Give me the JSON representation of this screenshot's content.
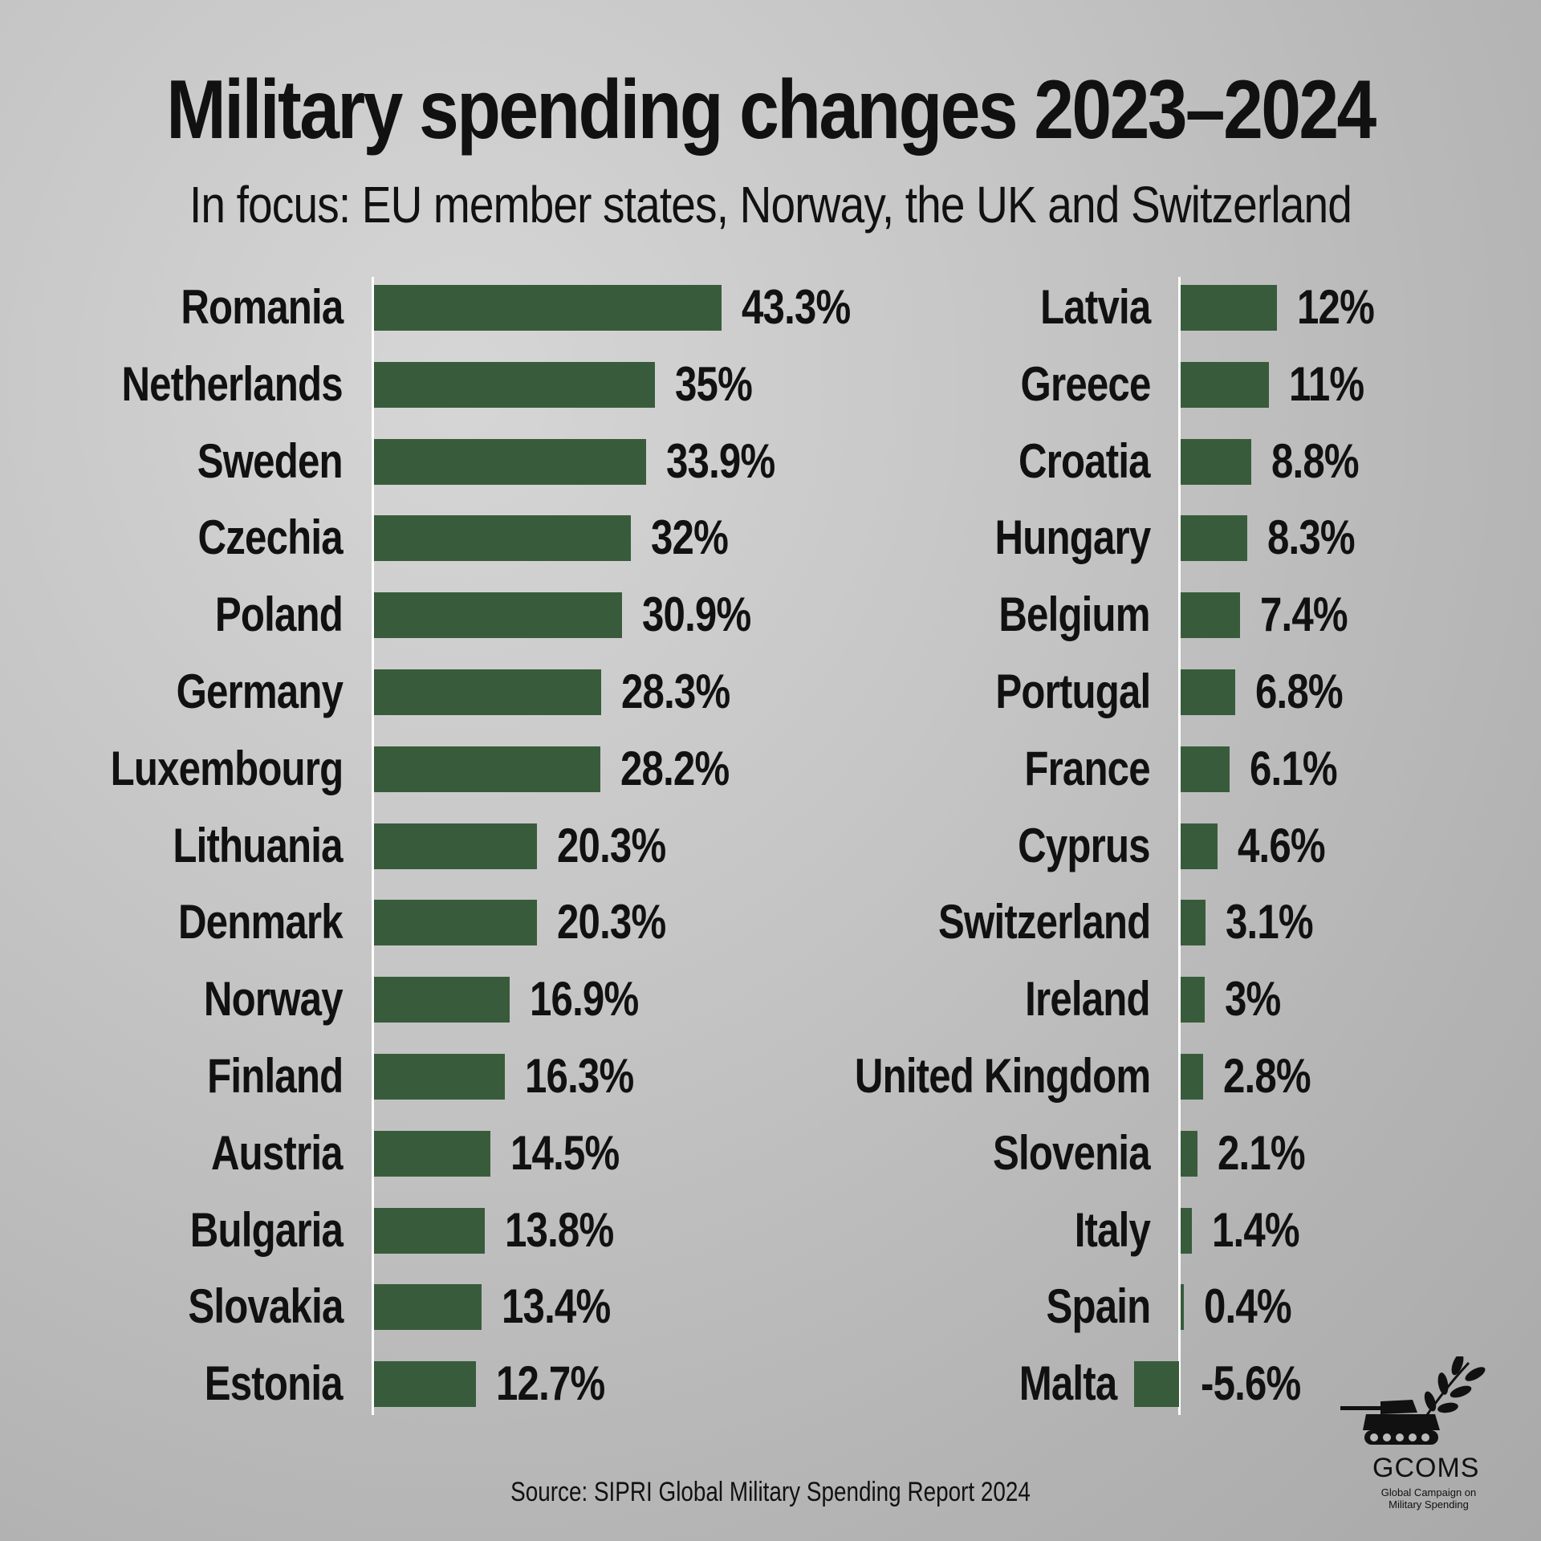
{
  "header": {
    "title": "Military spending changes 2023–2024",
    "subtitle": "In focus: EU member states, Norway, the UK and Switzerland"
  },
  "chart_data": {
    "type": "bar",
    "orientation": "horizontal",
    "title": "Military spending changes 2023–2024",
    "subtitle": "In focus: EU member states, Norway, the UK and Switzerland",
    "unit": "%",
    "bar_color": "#385c3b",
    "columns": [
      {
        "categories": [
          "Romania",
          "Netherlands",
          "Sweden",
          "Czechia",
          "Poland",
          "Germany",
          "Luxembourg",
          "Lithuania",
          "Denmark",
          "Norway",
          "Finland",
          "Austria",
          "Bulgaria",
          "Slovakia",
          "Estonia"
        ],
        "values": [
          43.3,
          35,
          33.9,
          32,
          30.9,
          28.3,
          28.2,
          20.3,
          20.3,
          16.9,
          16.3,
          14.5,
          13.8,
          13.4,
          12.7
        ],
        "labels": [
          "43.3%",
          "35%",
          "33.9%",
          "32%",
          "30.9%",
          "28.3%",
          "28.2%",
          "20.3%",
          "20.3%",
          "16.9%",
          "16.3%",
          "14.5%",
          "13.8%",
          "13.4%",
          "12.7%"
        ]
      },
      {
        "categories": [
          "Latvia",
          "Greece",
          "Croatia",
          "Hungary",
          "Belgium",
          "Portugal",
          "France",
          "Cyprus",
          "Switzerland",
          "Ireland",
          "United Kingdom",
          "Slovenia",
          "Italy",
          "Spain",
          "Malta"
        ],
        "values": [
          12,
          11,
          8.8,
          8.3,
          7.4,
          6.8,
          6.1,
          4.6,
          3.1,
          3,
          2.8,
          2.1,
          1.4,
          0.4,
          -5.6
        ],
        "labels": [
          "12%",
          "11%",
          "8.8%",
          "8.3%",
          "7.4%",
          "6.8%",
          "6.1%",
          "4.6%",
          "3.1%",
          "3%",
          "2.8%",
          "2.1%",
          "1.4%",
          "0.4%",
          "-5.6%"
        ]
      }
    ]
  },
  "footer": {
    "source": "Source: SIPRI Global Military Spending Report 2024"
  },
  "logo": {
    "name": "GCOMS",
    "tagline": "Global Campaign on Military Spending",
    "icon": "tank-with-olive-branch-icon"
  }
}
